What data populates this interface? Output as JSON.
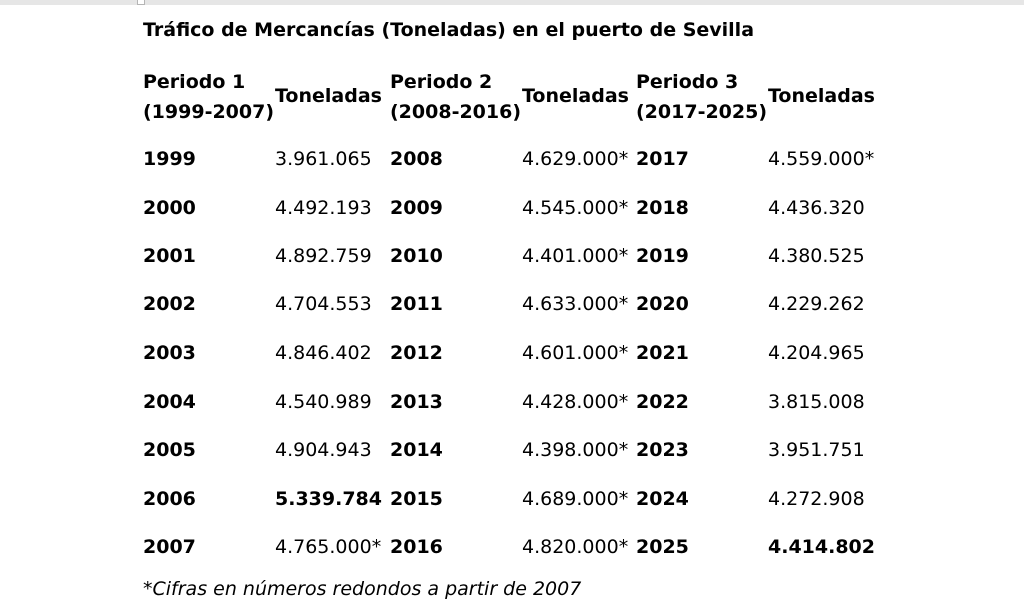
{
  "title": "Tráfico de Mercancías (Toneladas) en el puerto de Sevilla",
  "headers": {
    "p1_line1": "Periodo 1",
    "p1_line2": "(1999-2007)",
    "p2_line1": "Periodo 2",
    "p2_line2": "(2008-2016)",
    "p3_line1": "Periodo 3",
    "p3_line2": "(2017-2025)",
    "tons": "Toneladas"
  },
  "rows": [
    {
      "y1": "1999",
      "t1": "3.961.065",
      "y2": "2008",
      "t2": "4.629.000*",
      "y3": "2017",
      "t3": "4.559.000*"
    },
    {
      "y1": "2000",
      "t1": "4.492.193",
      "y2": "2009",
      "t2": "4.545.000*",
      "y3": "2018",
      "t3": "4.436.320"
    },
    {
      "y1": "2001",
      "t1": "4.892.759",
      "y2": "2010",
      "t2": "4.401.000*",
      "y3": "2019",
      "t3": "4.380.525"
    },
    {
      "y1": "2002",
      "t1": "4.704.553",
      "y2": "2011",
      "t2": "4.633.000*",
      "y3": "2020",
      "t3": "4.229.262"
    },
    {
      "y1": "2003",
      "t1": "4.846.402",
      "y2": "2012",
      "t2": "4.601.000*",
      "y3": "2021",
      "t3": "4.204.965"
    },
    {
      "y1": "2004",
      "t1": "4.540.989",
      "y2": "2013",
      "t2": "4.428.000*",
      "y3": "2022",
      "t3": "3.815.008"
    },
    {
      "y1": "2005",
      "t1": "4.904.943",
      "y2": "2014",
      "t2": "4.398.000*",
      "y3": "2023",
      "t3": "3.951.751"
    },
    {
      "y1": "2006",
      "t1": "5.339.784",
      "y2": "2015",
      "t2": "4.689.000*",
      "y3": "2024",
      "t3": "4.272.908"
    },
    {
      "y1": "2007",
      "t1": "4.765.000*",
      "y2": "2016",
      "t2": "4.820.000*",
      "y3": "2025",
      "t3": "4.414.802"
    }
  ],
  "note": "*Cifras en números redondos a partir de 2007"
}
